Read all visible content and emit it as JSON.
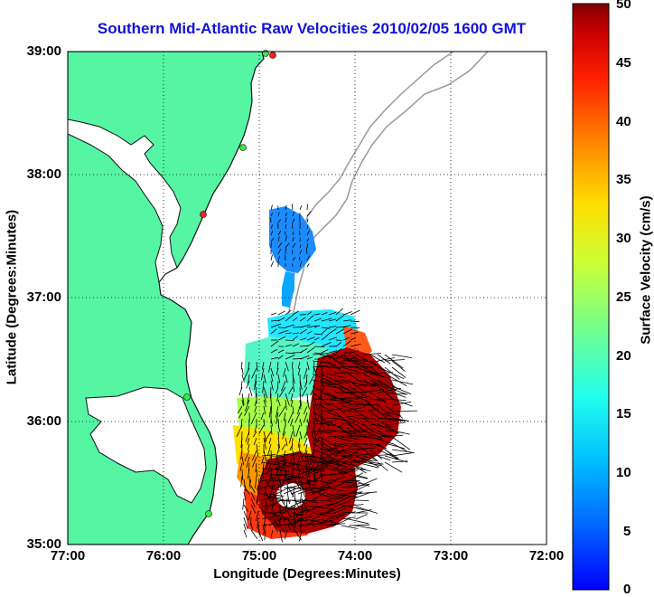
{
  "title": "Southern Mid-Atlantic Raw Velocities 2010/02/05 1600 GMT",
  "xlabel": "Longitude (Degrees:Minutes)",
  "ylabel": "Latitude (Degrees:Minutes)",
  "colorbar_label": "Surface Velocity (cm/s)",
  "x_ticks": [
    "77:00",
    "76:00",
    "75:00",
    "74:00",
    "73:00",
    "72:00"
  ],
  "y_ticks": [
    "39:00",
    "38:00",
    "37:00",
    "36:00",
    "35:00"
  ],
  "colorbar_ticks": [
    "50",
    "45",
    "40",
    "35",
    "30",
    "25",
    "20",
    "15",
    "10",
    "5",
    "0"
  ],
  "colors": {
    "land": "#55f5a3",
    "coastline": "#111111",
    "bathymetry": "#9a9a9a",
    "title": "#1212d8",
    "colormap": "jet"
  },
  "extent": {
    "lon_west": -77,
    "lon_east": -72,
    "lat_south": 35,
    "lat_north": 39
  },
  "velocity_range": [
    0,
    50
  ],
  "grid": true
}
